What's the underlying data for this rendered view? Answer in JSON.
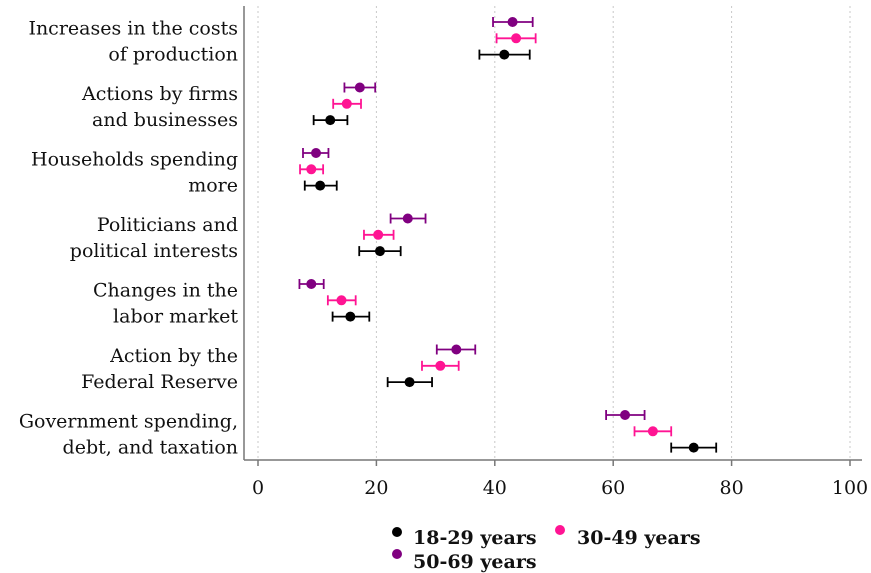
{
  "chart_data": {
    "type": "scatter",
    "variant": "dot-with-error-bars",
    "orientation": "horizontal",
    "categories": [
      [
        "Increases in the costs",
        "of production"
      ],
      [
        "Actions by firms",
        "and businesses"
      ],
      [
        "Households spending",
        "more"
      ],
      [
        "Politicians and",
        "political interests"
      ],
      [
        "Changes in the",
        "labor market"
      ],
      [
        "Action by the",
        "Federal Reserve"
      ],
      [
        "Government spending,",
        "debt, and taxation"
      ]
    ],
    "series": [
      {
        "name": "50-69 years",
        "color": "#800080",
        "values": [
          43.0,
          17.2,
          9.8,
          25.3,
          9.0,
          33.5,
          62.0
        ],
        "lower": [
          39.7,
          14.6,
          7.6,
          22.4,
          7.0,
          30.2,
          58.8
        ],
        "upper": [
          46.4,
          19.8,
          11.9,
          28.3,
          11.1,
          36.7,
          65.3
        ]
      },
      {
        "name": "30-49 years",
        "color": "#ff1493",
        "values": [
          43.6,
          15.0,
          9.0,
          20.3,
          14.1,
          30.8,
          66.7
        ],
        "lower": [
          40.3,
          12.7,
          7.1,
          17.9,
          11.8,
          27.7,
          63.6
        ],
        "upper": [
          46.9,
          17.4,
          11.0,
          22.9,
          16.5,
          33.9,
          69.8
        ]
      },
      {
        "name": "18-29 years",
        "color": "#000000",
        "values": [
          41.6,
          12.2,
          10.5,
          20.6,
          15.6,
          25.6,
          73.6
        ],
        "lower": [
          37.4,
          9.4,
          7.9,
          17.1,
          12.6,
          21.9,
          69.8
        ],
        "upper": [
          45.9,
          15.1,
          13.3,
          24.1,
          18.8,
          29.4,
          77.4
        ]
      }
    ],
    "legend_order": [
      "18-29 years",
      "30-49 years",
      "50-69 years"
    ],
    "xticks": [
      0,
      20,
      40,
      60,
      80,
      100
    ],
    "xlim": [
      0,
      100
    ],
    "grid": "vertical-dotted",
    "legend_position": "bottom-center"
  }
}
